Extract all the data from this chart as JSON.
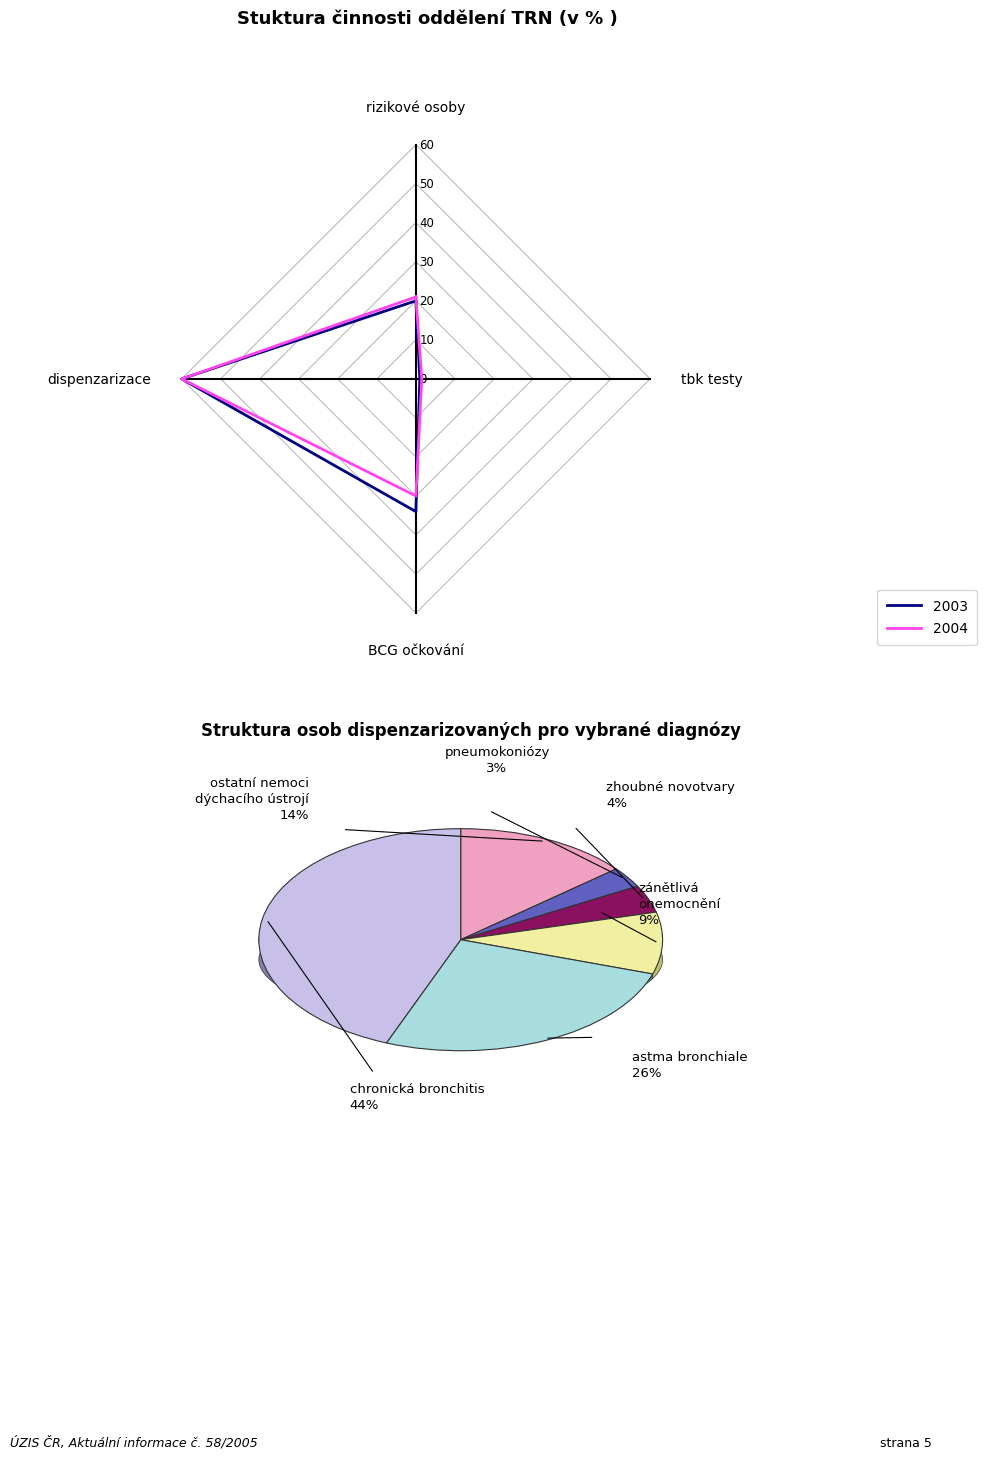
{
  "radar_title": "Stuktura činnosti oddělení TRN (v % )",
  "radar_categories": [
    "rizikové osoby",
    "tbk testy",
    "BCG očkování",
    "dispenzarizace"
  ],
  "radar_2003": [
    20,
    1,
    34,
    60
  ],
  "radar_2004": [
    21,
    1.5,
    30,
    60
  ],
  "radar_max": 60,
  "radar_ticks": [
    0,
    10,
    20,
    30,
    40,
    50,
    60
  ],
  "radar_color_2003": "#000080",
  "radar_color_2004": "#FF44EE",
  "radar_legend_2003": "2003",
  "radar_legend_2004": "2004",
  "pie_title": "Struktura osob dispenzarizovaných pro vybrané diagnózy",
  "pie_values": [
    14,
    3,
    4,
    9,
    26,
    44
  ],
  "pie_colors_top": [
    "#F0A0C0",
    "#6060C0",
    "#8B1060",
    "#F0F0A0",
    "#A8DDE0",
    "#C8C0E8"
  ],
  "pie_colors_side": [
    "#C07090",
    "#404090",
    "#5A0040",
    "#C0C070",
    "#507878",
    "#8080A8"
  ],
  "pie_label_texts": [
    "ostatní nemoci\ndýchacího ústrojí\n14%",
    "pneumokoniózy\n3%",
    "zhoubné novotvary\n4%",
    "zánětlivá\nonemocnění\n9%",
    "astma bronchiale\n26%",
    "chronická bronchitis\n44%"
  ],
  "footer_left": "ÚZIS ČR, Aktuální informace č. 58/2005",
  "footer_right": "strana 5",
  "bg_color": "#FFFFFF"
}
